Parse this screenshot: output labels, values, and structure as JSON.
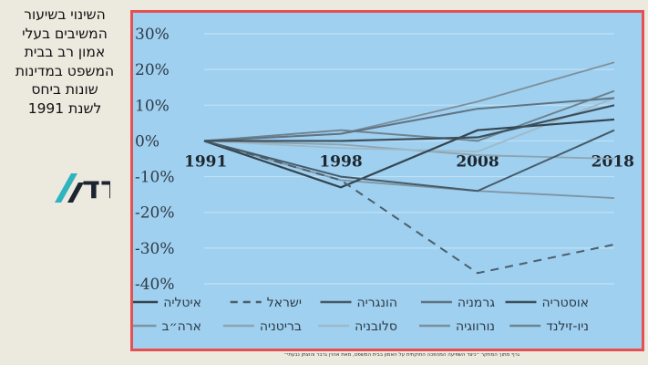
{
  "side_title": "השינוי בשיעור\nהמשיבים בעלי\nאמון רב בבית\nהמשפט במדינות\nשונות ביחס\nלשנת 1991",
  "logo_text": "המדד",
  "caption": "גרף מתוך המחקר ״כיצד השפיעה המהפכה החוקתית על האמון בבית המשפט, מאת אהרן גרבר והוצתן נבעתי״",
  "chart_data": {
    "type": "line",
    "x": [
      "1991",
      "1998",
      "2008",
      "2018"
    ],
    "y_ticks": [
      "30%",
      "20%",
      "10%",
      "0%",
      "-10%",
      "-20%",
      "-30%",
      "-40%"
    ],
    "ylim": [
      -40,
      30
    ],
    "grid": true,
    "legend_position": "bottom",
    "series": [
      {
        "name": "אוסטריה",
        "values": [
          0,
          0,
          1,
          10
        ],
        "color": "#3d4f5c",
        "dash": "solid",
        "width": 2.2
      },
      {
        "name": "גרמניה",
        "values": [
          0,
          2,
          9,
          12
        ],
        "color": "#5f7482",
        "dash": "solid",
        "width": 2
      },
      {
        "name": "הונגריה",
        "values": [
          0,
          -10,
          -14,
          3
        ],
        "color": "#465a68",
        "dash": "solid",
        "width": 2
      },
      {
        "name": "ישראל",
        "values": [
          0,
          -11,
          -37,
          -29
        ],
        "color": "#4b5f6d",
        "dash": "dashed",
        "width": 2
      },
      {
        "name": "איטליה",
        "values": [
          0,
          -13,
          3,
          6
        ],
        "color": "#33444f",
        "dash": "solid",
        "width": 2.2
      },
      {
        "name": "ניו-זילנד",
        "values": [
          0,
          3,
          0,
          14
        ],
        "color": "#6e838f",
        "dash": "solid",
        "width": 2
      },
      {
        "name": "נורווגיה",
        "values": [
          0,
          2,
          11,
          22
        ],
        "color": "#7c8f9b",
        "dash": "solid",
        "width": 1.8
      },
      {
        "name": "סלובניה",
        "values": [
          0,
          -2,
          -3,
          12
        ],
        "color": "#9fb8c6",
        "dash": "solid",
        "width": 1.8
      },
      {
        "name": "בריטניה",
        "values": [
          0,
          -1,
          -4,
          -5
        ],
        "color": "#8da3b0",
        "dash": "solid",
        "width": 1.8
      },
      {
        "name": "ארה״ב",
        "values": [
          0,
          -11,
          -14,
          -16
        ],
        "color": "#7f93a0",
        "dash": "solid",
        "width": 1.8
      }
    ]
  }
}
